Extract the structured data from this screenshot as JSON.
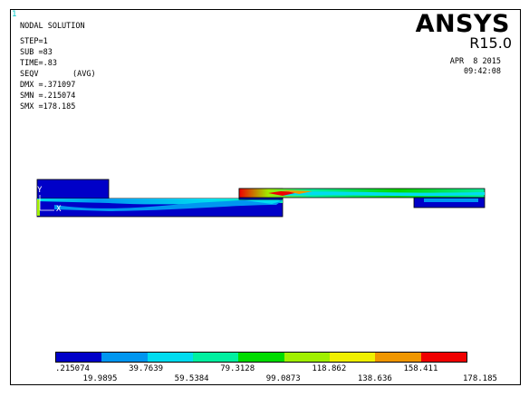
{
  "window_number": "1",
  "solution": {
    "title": "NODAL SOLUTION",
    "step": "STEP=1",
    "sub": "SUB =83",
    "time": "TIME=.83",
    "item": "SEQV",
    "avg": "(AVG)",
    "dmx": "DMX =.371097",
    "smn": "SMN =.215074",
    "smx": "SMX =178.185"
  },
  "branding": {
    "name": "ANSYS",
    "release": "R15.0"
  },
  "timestamp": {
    "date": "APR  8 2015",
    "time": "09:42:08"
  },
  "axes": {
    "y": "Y",
    "x": "X"
  },
  "contour_legend": {
    "colors": [
      "#0000c8",
      "#0096f0",
      "#00dcf0",
      "#00f0a0",
      "#00dc00",
      "#a0f000",
      "#f0f000",
      "#f09600",
      "#f00000"
    ],
    "upper_labels": [
      ".215074",
      "39.7639",
      "79.3128",
      "118.862",
      "158.411"
    ],
    "lower_labels": [
      "19.9895",
      "59.5384",
      "99.0873",
      "138.636",
      "178.185"
    ]
  }
}
